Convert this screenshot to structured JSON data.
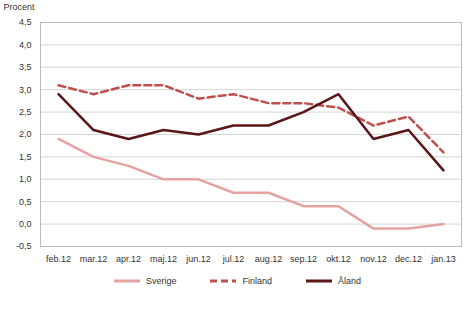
{
  "chart_data": {
    "type": "line",
    "ylabel": "Procent",
    "categories": [
      "feb.12",
      "mar.12",
      "apr.12",
      "maj.12",
      "jun.12",
      "jul.12",
      "aug.12",
      "sep.12",
      "okt.12",
      "nov.12",
      "dec.12",
      "jan.13"
    ],
    "series": [
      {
        "name": "Sverige",
        "color": "#e3a3a0",
        "line_style": "solid",
        "values": [
          1.9,
          1.5,
          1.3,
          1.0,
          1.0,
          0.7,
          0.7,
          0.4,
          0.4,
          -0.1,
          -0.1,
          0.0
        ]
      },
      {
        "name": "Finland",
        "color": "#c0504d",
        "line_style": "dashed",
        "values": [
          3.1,
          2.9,
          3.1,
          3.1,
          2.8,
          2.9,
          2.7,
          2.7,
          2.6,
          2.2,
          2.4,
          1.6
        ]
      },
      {
        "name": "Åland",
        "color": "#5a1616",
        "line_style": "solid",
        "values": [
          2.9,
          2.1,
          1.9,
          2.1,
          2.0,
          2.2,
          2.2,
          2.5,
          2.9,
          1.9,
          2.1,
          1.2
        ]
      }
    ],
    "ylim": [
      -0.5,
      4.5
    ],
    "yticks": [
      {
        "value": -0.5,
        "label": "-0,5"
      },
      {
        "value": 0,
        "label": "0,0"
      },
      {
        "value": 0.5,
        "label": "0,5"
      },
      {
        "value": 1,
        "label": "1,0"
      },
      {
        "value": 1.5,
        "label": "1,5"
      },
      {
        "value": 2,
        "label": "2,0"
      },
      {
        "value": 2.5,
        "label": "2,5"
      },
      {
        "value": 3,
        "label": "3,0"
      },
      {
        "value": 3.5,
        "label": "3,5"
      },
      {
        "value": 4,
        "label": "4,0"
      },
      {
        "value": 4.5,
        "label": "4,5"
      }
    ],
    "grid": true,
    "legend": "bottom"
  }
}
